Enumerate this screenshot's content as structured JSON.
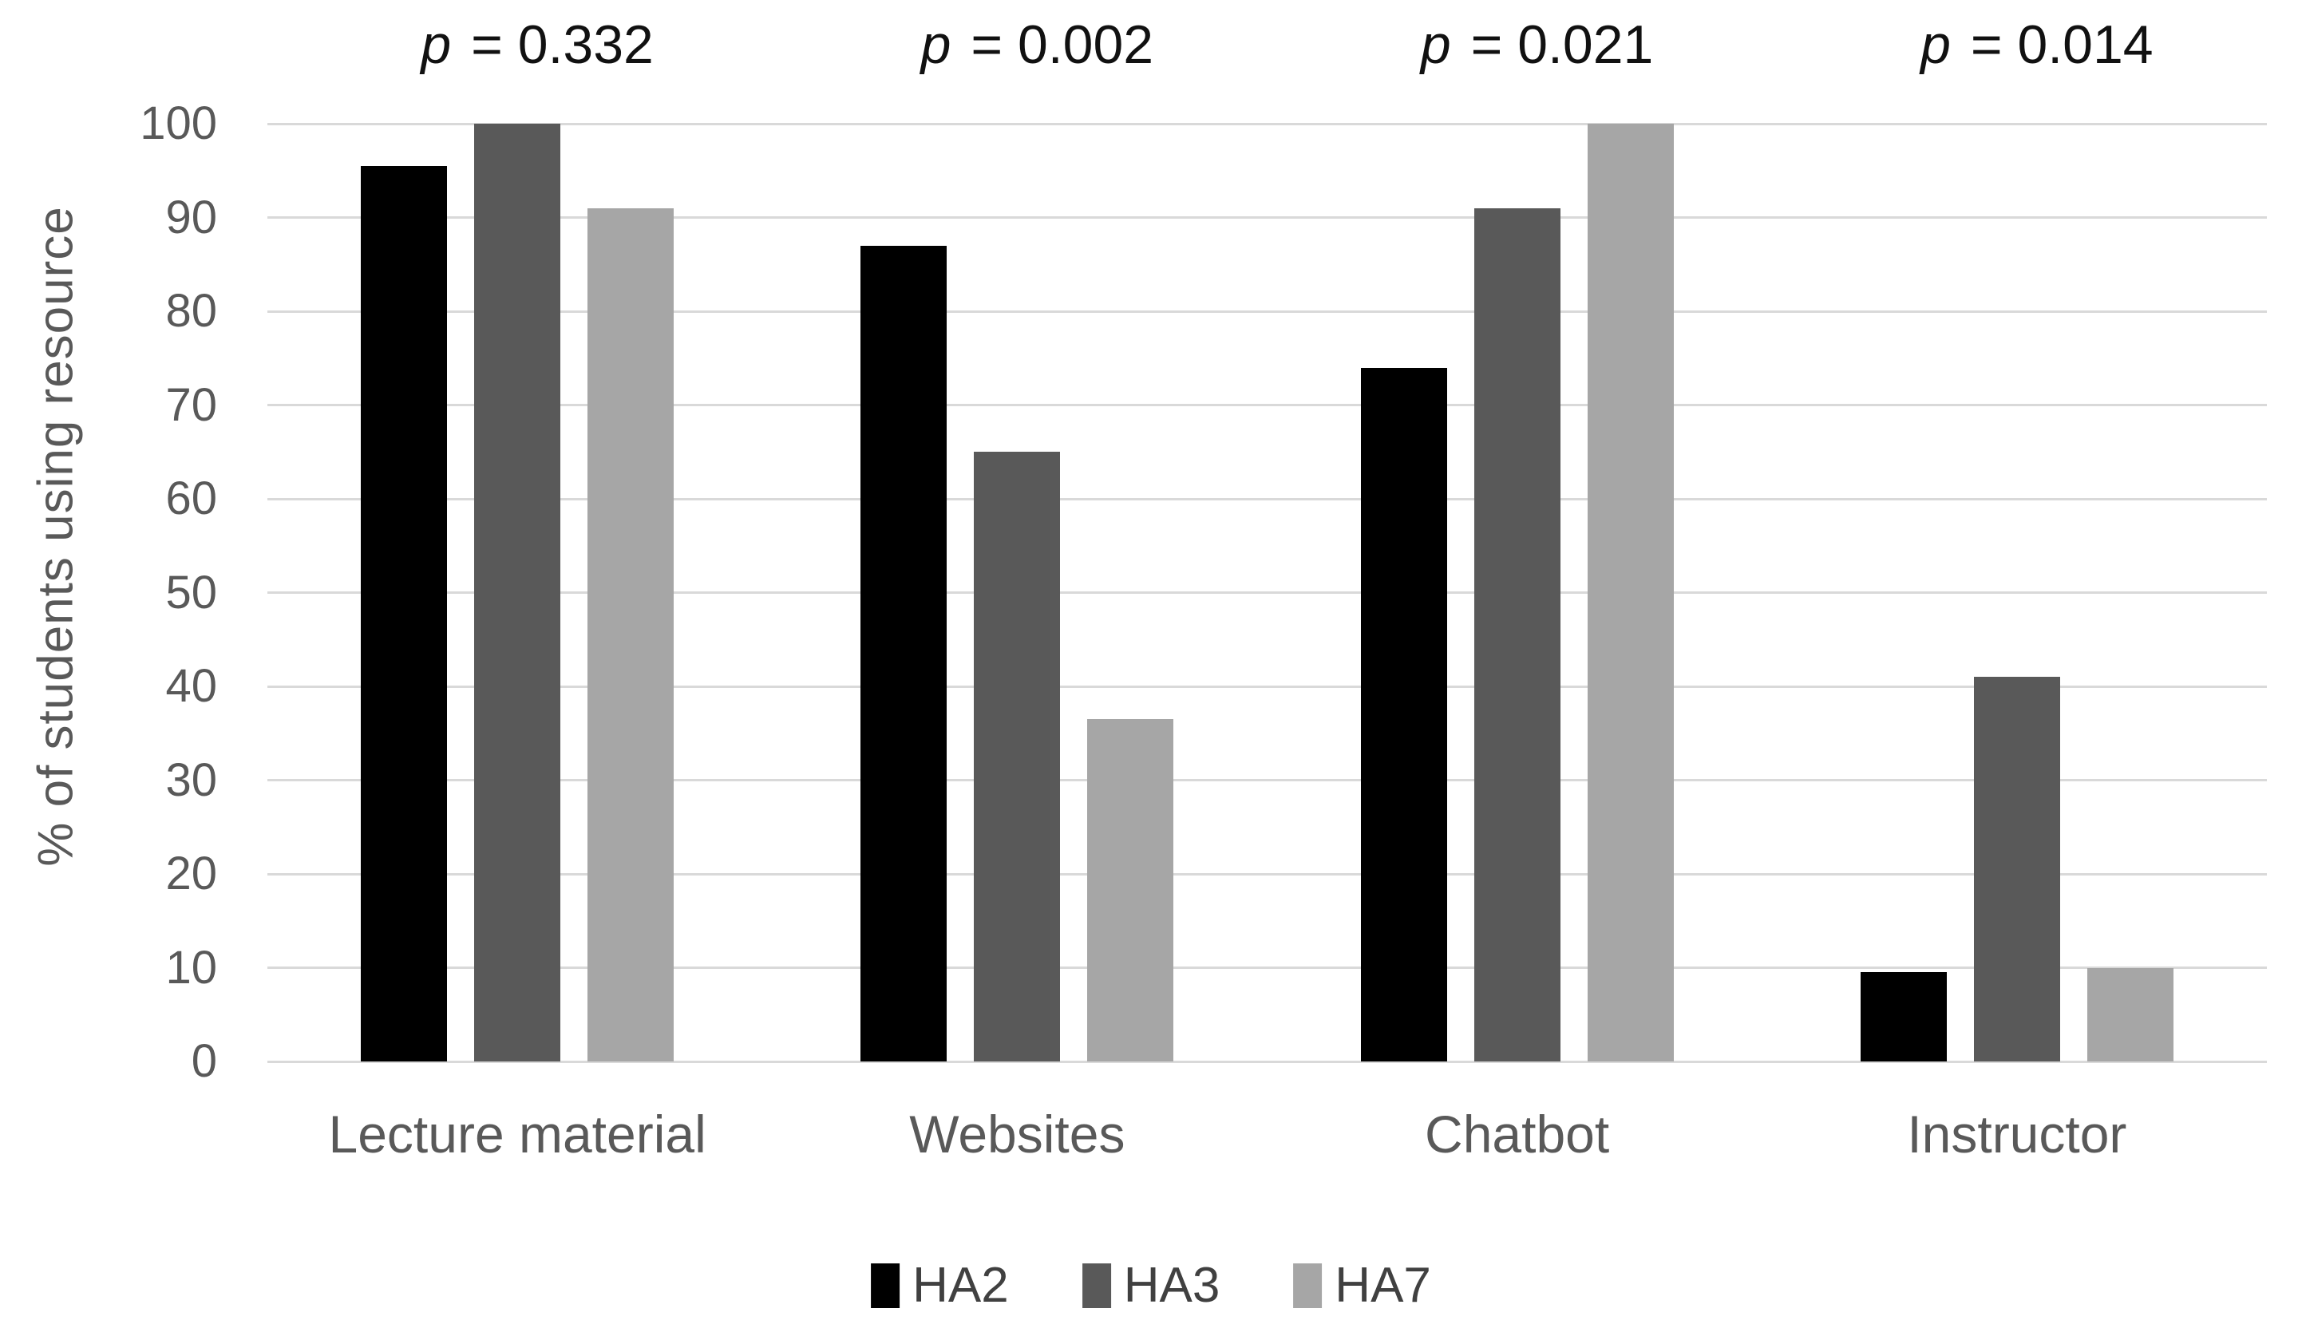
{
  "chart_data": {
    "type": "bar",
    "title": "",
    "categories": [
      "Lecture material",
      "Websites",
      "Chatbot",
      "Instructor"
    ],
    "series": [
      {
        "name": "HA2",
        "color": "#000000",
        "values": [
          95.5,
          87,
          74,
          9.5
        ]
      },
      {
        "name": "HA3",
        "color": "#595959",
        "values": [
          100,
          65,
          91,
          41
        ]
      },
      {
        "name": "HA7",
        "color": "#a6a6a6",
        "values": [
          91,
          36.5,
          100,
          10
        ]
      }
    ],
    "annotations": [
      {
        "category": "Lecture material",
        "text": "p = 0.332"
      },
      {
        "category": "Websites",
        "text": "p = 0.002"
      },
      {
        "category": "Chatbot",
        "text": "p = 0.021"
      },
      {
        "category": "Instructor",
        "text": "p = 0.014"
      }
    ],
    "xlabel": "",
    "ylabel": "% of students using resource",
    "ylim": [
      0,
      100
    ],
    "yticks": [
      0,
      10,
      20,
      30,
      40,
      50,
      60,
      70,
      80,
      90,
      100
    ],
    "grid": "horizontal",
    "legend_position": "bottom",
    "legend_entries": [
      "HA2",
      "HA3",
      "HA7"
    ]
  },
  "colors": {
    "background": "#ffffff",
    "gridline": "#d9d9d9",
    "axis_text": "#595959",
    "annotation_text": "#111111",
    "series_ha2": "#000000",
    "series_ha3": "#595959",
    "series_ha7": "#a6a6a6"
  }
}
